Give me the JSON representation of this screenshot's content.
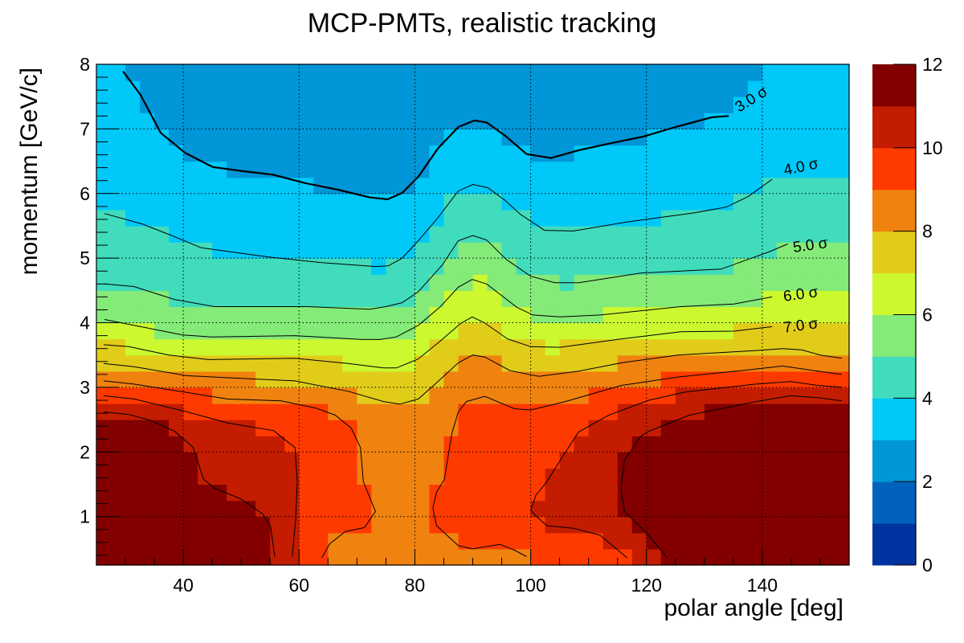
{
  "chart_data": {
    "type": "heatmap",
    "title": "MCP-PMTs, realistic tracking",
    "xlabel": "polar angle [deg]",
    "ylabel": "momentum [GeV/c]",
    "xlim": [
      25,
      155
    ],
    "ylim": [
      0.25,
      8
    ],
    "x_bin_width": 2.5,
    "y_bin_width": 0.25,
    "grid": true,
    "x_ticks": [
      40,
      60,
      80,
      100,
      120,
      140
    ],
    "x_tick_labels": [
      "40",
      "60",
      "80",
      "100",
      "120",
      "140"
    ],
    "y_ticks": [
      1,
      2,
      3,
      4,
      5,
      6,
      7,
      8
    ],
    "y_tick_labels": [
      "1",
      "2",
      "3",
      "4",
      "5",
      "6",
      "7",
      "8"
    ],
    "colorbar": {
      "range": [
        0,
        12
      ],
      "ticks": [
        0,
        2,
        4,
        6,
        8,
        10,
        12
      ],
      "tick_labels": [
        "0",
        "2",
        "4",
        "6",
        "8",
        "10",
        "12"
      ],
      "palette": [
        "#0032a0",
        "#0062bc",
        "#0096d8",
        "#00c8f8",
        "#40dcbc",
        "#84ea78",
        "#ccf830",
        "#e2cc1a",
        "#f0820f",
        "#ff3a00",
        "#c41c00",
        "#820000"
      ]
    },
    "contours": [
      {
        "level": 3,
        "label": "3.0 σ",
        "bold": true,
        "pre": [
          [
            29.3,
            8.1
          ]
        ],
        "points": [
          [
            29.6,
            7.89
          ],
          [
            32.6,
            7.53
          ],
          [
            36.1,
            6.94
          ],
          [
            40.3,
            6.63
          ],
          [
            45.1,
            6.41
          ],
          [
            50,
            6.35
          ],
          [
            55.6,
            6.29
          ],
          [
            61.1,
            6.16
          ],
          [
            66.7,
            6.06
          ],
          [
            72.2,
            5.94
          ],
          [
            75.3,
            5.91
          ],
          [
            77.8,
            6.01
          ],
          [
            80.6,
            6.26
          ],
          [
            84,
            6.7
          ],
          [
            87.5,
            7.03
          ],
          [
            90.3,
            7.13
          ],
          [
            92.4,
            7.1
          ],
          [
            95.8,
            6.88
          ],
          [
            99.3,
            6.61
          ],
          [
            103.5,
            6.55
          ],
          [
            108.3,
            6.67
          ],
          [
            113.9,
            6.78
          ],
          [
            119.4,
            6.88
          ],
          [
            125,
            7.03
          ],
          [
            131.3,
            7.18
          ],
          [
            134.2,
            7.2
          ]
        ],
        "post": [
          [
            137,
            7.45
          ],
          [
            139,
            7.75
          ],
          [
            140.5,
            8.1
          ]
        ]
      },
      {
        "level": 4,
        "label": "4.0 σ",
        "pre": [
          [
            25,
            5.71
          ]
        ],
        "points": [
          [
            26.4,
            5.69
          ],
          [
            32.9,
            5.53
          ],
          [
            38,
            5.35
          ],
          [
            43.1,
            5.16
          ],
          [
            54.6,
            5.02
          ],
          [
            63.9,
            4.93
          ],
          [
            73.2,
            4.87
          ],
          [
            75.4,
            4.88
          ],
          [
            77.8,
            5.0
          ],
          [
            80.6,
            5.27
          ],
          [
            83.75,
            5.6
          ],
          [
            87.5,
            6.04
          ],
          [
            90,
            6.14
          ],
          [
            92.6,
            6.09
          ],
          [
            95.5,
            5.9
          ],
          [
            98.2,
            5.68
          ],
          [
            102.4,
            5.43
          ],
          [
            107.4,
            5.42
          ],
          [
            116.7,
            5.56
          ],
          [
            128.2,
            5.7
          ],
          [
            133.75,
            5.79
          ],
          [
            137.5,
            5.95
          ],
          [
            141.7,
            6.22
          ]
        ],
        "post": [
          [
            145,
            6.35
          ],
          [
            156,
            6.35
          ]
        ]
      },
      {
        "level": 5,
        "label": "5.0 σ",
        "pre": [
          [
            25,
            4.61
          ]
        ],
        "points": [
          [
            26.4,
            4.6
          ],
          [
            31.5,
            4.56
          ],
          [
            38.5,
            4.36
          ],
          [
            45.4,
            4.25
          ],
          [
            61.5,
            4.25
          ],
          [
            72.2,
            4.21
          ],
          [
            75,
            4.25
          ],
          [
            77.8,
            4.31
          ],
          [
            80.6,
            4.48
          ],
          [
            84.7,
            4.89
          ],
          [
            87.5,
            5.27
          ],
          [
            90,
            5.35
          ],
          [
            92.4,
            5.28
          ],
          [
            95.8,
            4.98
          ],
          [
            100,
            4.72
          ],
          [
            104.2,
            4.62
          ],
          [
            108.3,
            4.62
          ],
          [
            119,
            4.77
          ],
          [
            132.9,
            4.83
          ],
          [
            137.5,
            4.98
          ],
          [
            141.25,
            5.1
          ],
          [
            144.4,
            5.22
          ]
        ],
        "post": [
          [
            148,
            5.27
          ],
          [
            156,
            5.2
          ]
        ]
      },
      {
        "level": 6,
        "label": "6.0 σ",
        "pre": [
          [
            25,
            4.06
          ]
        ],
        "points": [
          [
            26.4,
            4.05
          ],
          [
            29.2,
            4.0
          ],
          [
            39.9,
            3.81
          ],
          [
            44.9,
            3.78
          ],
          [
            59.3,
            3.8
          ],
          [
            70.8,
            3.74
          ],
          [
            74,
            3.74
          ],
          [
            76.8,
            3.78
          ],
          [
            80.6,
            3.96
          ],
          [
            84.3,
            4.24
          ],
          [
            87.5,
            4.55
          ],
          [
            89.9,
            4.67
          ],
          [
            92.4,
            4.6
          ],
          [
            97.6,
            4.24
          ],
          [
            100.4,
            4.12
          ],
          [
            105.1,
            4.09
          ],
          [
            112,
            4.12
          ],
          [
            125.9,
            4.25
          ],
          [
            135.1,
            4.29
          ],
          [
            141.7,
            4.4
          ]
        ],
        "post": [
          [
            148,
            4.42
          ],
          [
            156,
            4.42
          ]
        ]
      },
      {
        "level": 7,
        "label": "7.0 σ",
        "pre": [
          [
            25,
            3.67
          ]
        ],
        "points": [
          [
            26.25,
            3.66
          ],
          [
            30.6,
            3.63
          ],
          [
            37.5,
            3.5
          ],
          [
            44.4,
            3.43
          ],
          [
            59.3,
            3.45
          ],
          [
            68.5,
            3.37
          ],
          [
            74.6,
            3.3
          ],
          [
            76.8,
            3.3
          ],
          [
            80.6,
            3.44
          ],
          [
            84.3,
            3.71
          ],
          [
            87.9,
            3.99
          ],
          [
            89.9,
            4.09
          ],
          [
            92,
            4.0
          ],
          [
            96,
            3.75
          ],
          [
            100,
            3.63
          ],
          [
            105.1,
            3.62
          ],
          [
            115.7,
            3.75
          ],
          [
            125.9,
            3.86
          ],
          [
            135.1,
            3.87
          ],
          [
            141.7,
            3.94
          ]
        ],
        "post": [
          [
            148,
            3.95
          ],
          [
            156,
            3.95
          ]
        ]
      },
      {
        "level": 8,
        "label": "",
        "pre": [
          [
            25,
            3.38
          ]
        ],
        "points": [
          [
            26.25,
            3.37
          ],
          [
            31.5,
            3.32
          ],
          [
            40.7,
            3.18
          ],
          [
            50,
            3.14
          ],
          [
            59.3,
            3.1
          ],
          [
            68.5,
            2.94
          ],
          [
            74.6,
            2.78
          ],
          [
            77.4,
            2.74
          ],
          [
            80.6,
            2.82
          ],
          [
            83.75,
            3.07
          ],
          [
            87.5,
            3.38
          ],
          [
            90,
            3.5
          ],
          [
            92.1,
            3.47
          ],
          [
            96.4,
            3.26
          ],
          [
            101.4,
            3.17
          ],
          [
            108.3,
            3.25
          ],
          [
            115.7,
            3.38
          ],
          [
            125.4,
            3.5
          ],
          [
            138.9,
            3.57
          ],
          [
            143.5,
            3.6
          ],
          [
            146.8,
            3.58
          ],
          [
            150,
            3.5
          ],
          [
            153.75,
            3.45
          ]
        ],
        "post": [
          [
            156,
            3.44
          ]
        ]
      },
      {
        "level": 9,
        "label": "",
        "pre": [
          [
            25,
            3.11
          ]
        ],
        "points": [
          [
            26.25,
            3.1
          ],
          [
            31.5,
            3.05
          ],
          [
            40.7,
            2.92
          ],
          [
            47.6,
            2.82
          ],
          [
            56.9,
            2.79
          ],
          [
            62.9,
            2.68
          ],
          [
            66.25,
            2.57
          ],
          [
            69,
            2.37
          ],
          [
            70.6,
            2.07
          ],
          [
            71.1,
            1.54
          ],
          [
            73.2,
            1.08
          ],
          [
            71.3,
            0.83
          ],
          [
            68,
            0.77
          ],
          [
            65.3,
            0.58
          ],
          [
            63.9,
            0.36
          ]
        ],
        "post": [
          [
            63.5,
            0.0
          ]
        ]
      },
      {
        "level": 9,
        "label": "",
        "pre": [
          [
            99.6,
            0.0
          ]
        ],
        "points": [
          [
            99.3,
            0.38
          ],
          [
            97.2,
            0.48
          ],
          [
            94.7,
            0.57
          ],
          [
            90,
            0.5
          ],
          [
            87.5,
            0.55
          ],
          [
            83.75,
            0.86
          ],
          [
            83.1,
            1.13
          ],
          [
            83.75,
            1.38
          ],
          [
            85.1,
            1.58
          ],
          [
            85.7,
            1.91
          ],
          [
            86.4,
            2.29
          ],
          [
            87.5,
            2.62
          ],
          [
            88.9,
            2.78
          ],
          [
            92.1,
            2.86
          ],
          [
            97.2,
            2.67
          ],
          [
            100,
            2.65
          ],
          [
            106,
            2.78
          ],
          [
            115.7,
            3.03
          ],
          [
            125.4,
            3.16
          ],
          [
            137.5,
            3.27
          ],
          [
            143.5,
            3.33
          ],
          [
            149.6,
            3.25
          ],
          [
            153.75,
            3.2
          ]
        ],
        "post": [
          [
            156,
            3.19
          ]
        ]
      },
      {
        "level": 10,
        "label": "",
        "pre": [
          [
            25,
            2.88
          ]
        ],
        "points": [
          [
            26.25,
            2.87
          ],
          [
            31.5,
            2.82
          ],
          [
            40.7,
            2.62
          ],
          [
            47.6,
            2.45
          ],
          [
            55.6,
            2.33
          ],
          [
            57.4,
            2.2
          ],
          [
            59.3,
            2.07
          ],
          [
            59.7,
            1.54
          ],
          [
            59.4,
            0.92
          ],
          [
            58.8,
            0.38
          ]
        ],
        "post": [
          [
            58.7,
            0.0
          ]
        ]
      },
      {
        "level": 10,
        "label": "",
        "pre": [
          [
            117,
            0.0
          ]
        ],
        "points": [
          [
            116.7,
            0.36
          ],
          [
            112,
            0.71
          ],
          [
            107.4,
            0.82
          ],
          [
            102.8,
            0.86
          ],
          [
            101,
            1.0
          ],
          [
            100,
            1.1
          ],
          [
            100.9,
            1.33
          ],
          [
            102.8,
            1.54
          ],
          [
            105.6,
            1.94
          ],
          [
            108.3,
            2.31
          ],
          [
            113.5,
            2.57
          ],
          [
            120.4,
            2.8
          ],
          [
            126.8,
            2.93
          ],
          [
            138.9,
            3.05
          ],
          [
            144.9,
            3.09
          ],
          [
            149.6,
            3.03
          ],
          [
            153.75,
            3.0
          ]
        ],
        "post": [
          [
            156,
            2.99
          ]
        ]
      },
      {
        "level": 11,
        "label": "",
        "pre": [
          [
            25,
            2.63
          ]
        ],
        "points": [
          [
            26.25,
            2.62
          ],
          [
            30.6,
            2.58
          ],
          [
            34.3,
            2.49
          ],
          [
            38.5,
            2.32
          ],
          [
            41.7,
            2.07
          ],
          [
            43.5,
            1.58
          ],
          [
            45.4,
            1.44
          ],
          [
            50,
            1.27
          ],
          [
            53.75,
            1.04
          ],
          [
            55.1,
            0.83
          ],
          [
            55.8,
            0.38
          ]
        ],
        "post": [
          [
            55.9,
            0.0
          ]
        ]
      },
      {
        "level": 11,
        "label": "",
        "pre": [
          [
            124,
            0.0
          ]
        ],
        "points": [
          [
            123.6,
            0.36
          ],
          [
            120.4,
            0.71
          ],
          [
            116.2,
            1.08
          ],
          [
            115.6,
            1.42
          ],
          [
            116.2,
            1.87
          ],
          [
            119,
            2.24
          ],
          [
            120.4,
            2.32
          ],
          [
            127.4,
            2.57
          ],
          [
            138.9,
            2.78
          ],
          [
            144.9,
            2.87
          ],
          [
            149.6,
            2.84
          ],
          [
            153.75,
            2.79
          ]
        ],
        "post": [
          [
            156,
            2.78
          ]
        ]
      }
    ]
  }
}
